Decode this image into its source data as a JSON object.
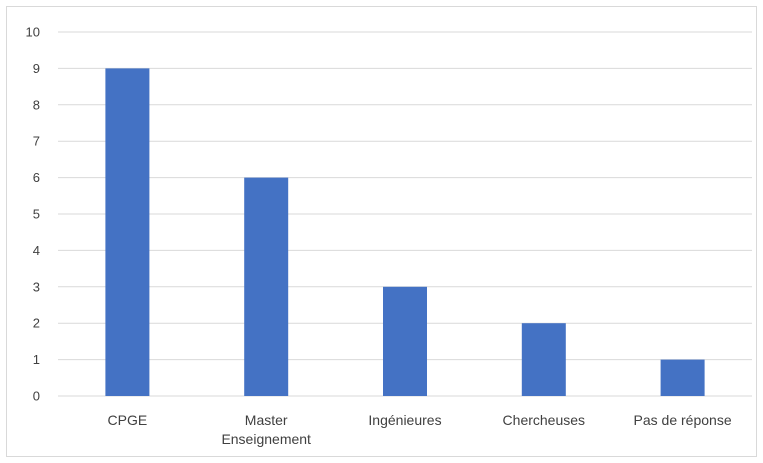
{
  "chart_data": {
    "type": "bar",
    "title": "",
    "xlabel": "",
    "ylabel": "",
    "categories": [
      [
        "CPGE"
      ],
      [
        "Master",
        "Enseignement"
      ],
      [
        "Ingénieures"
      ],
      [
        "Chercheuses"
      ],
      [
        "Pas de réponse"
      ]
    ],
    "values": [
      9,
      6,
      3,
      2,
      1
    ],
    "ylim": [
      0,
      10
    ],
    "yticks": [
      "0",
      "1",
      "2",
      "3",
      "4",
      "5",
      "6",
      "7",
      "8",
      "9",
      "10"
    ],
    "grid": true,
    "legend": "none",
    "bar_color": "#4472c4",
    "grid_color": "#d9d9d9"
  }
}
